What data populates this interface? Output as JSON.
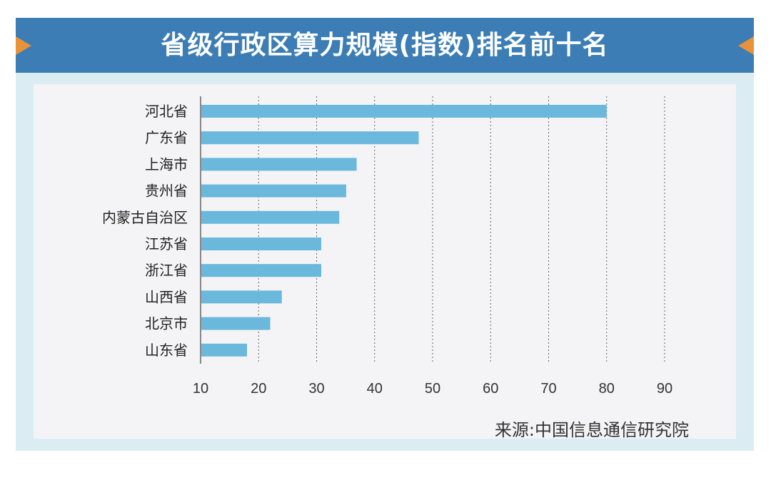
{
  "title": "省级行政区算力规模(指数)排名前十名",
  "source": "来源:中国信息通信研究院",
  "colors": {
    "bar": "#6ab8dc",
    "banner": "#3b7db4",
    "accent": "#e8933a",
    "panel": "#f4f4f6"
  },
  "chart_data": {
    "type": "bar",
    "orientation": "horizontal",
    "title": "省级行政区算力规模(指数)排名前十名",
    "categories": [
      "河北省",
      "广东省",
      "上海市",
      "贵州省",
      "内蒙古自治区",
      "江苏省",
      "浙江省",
      "山西省",
      "北京市",
      "山东省"
    ],
    "values": [
      80,
      47.6,
      36.9,
      35.1,
      33.9,
      30.8,
      30.8,
      24.0,
      22.0,
      18.0
    ],
    "xlim": [
      10,
      90
    ],
    "xticks": [
      "10",
      "20",
      "30",
      "40",
      "50",
      "60",
      "70",
      "80",
      "90"
    ],
    "grid": "vertical dashed",
    "xlabel": "",
    "ylabel": ""
  }
}
